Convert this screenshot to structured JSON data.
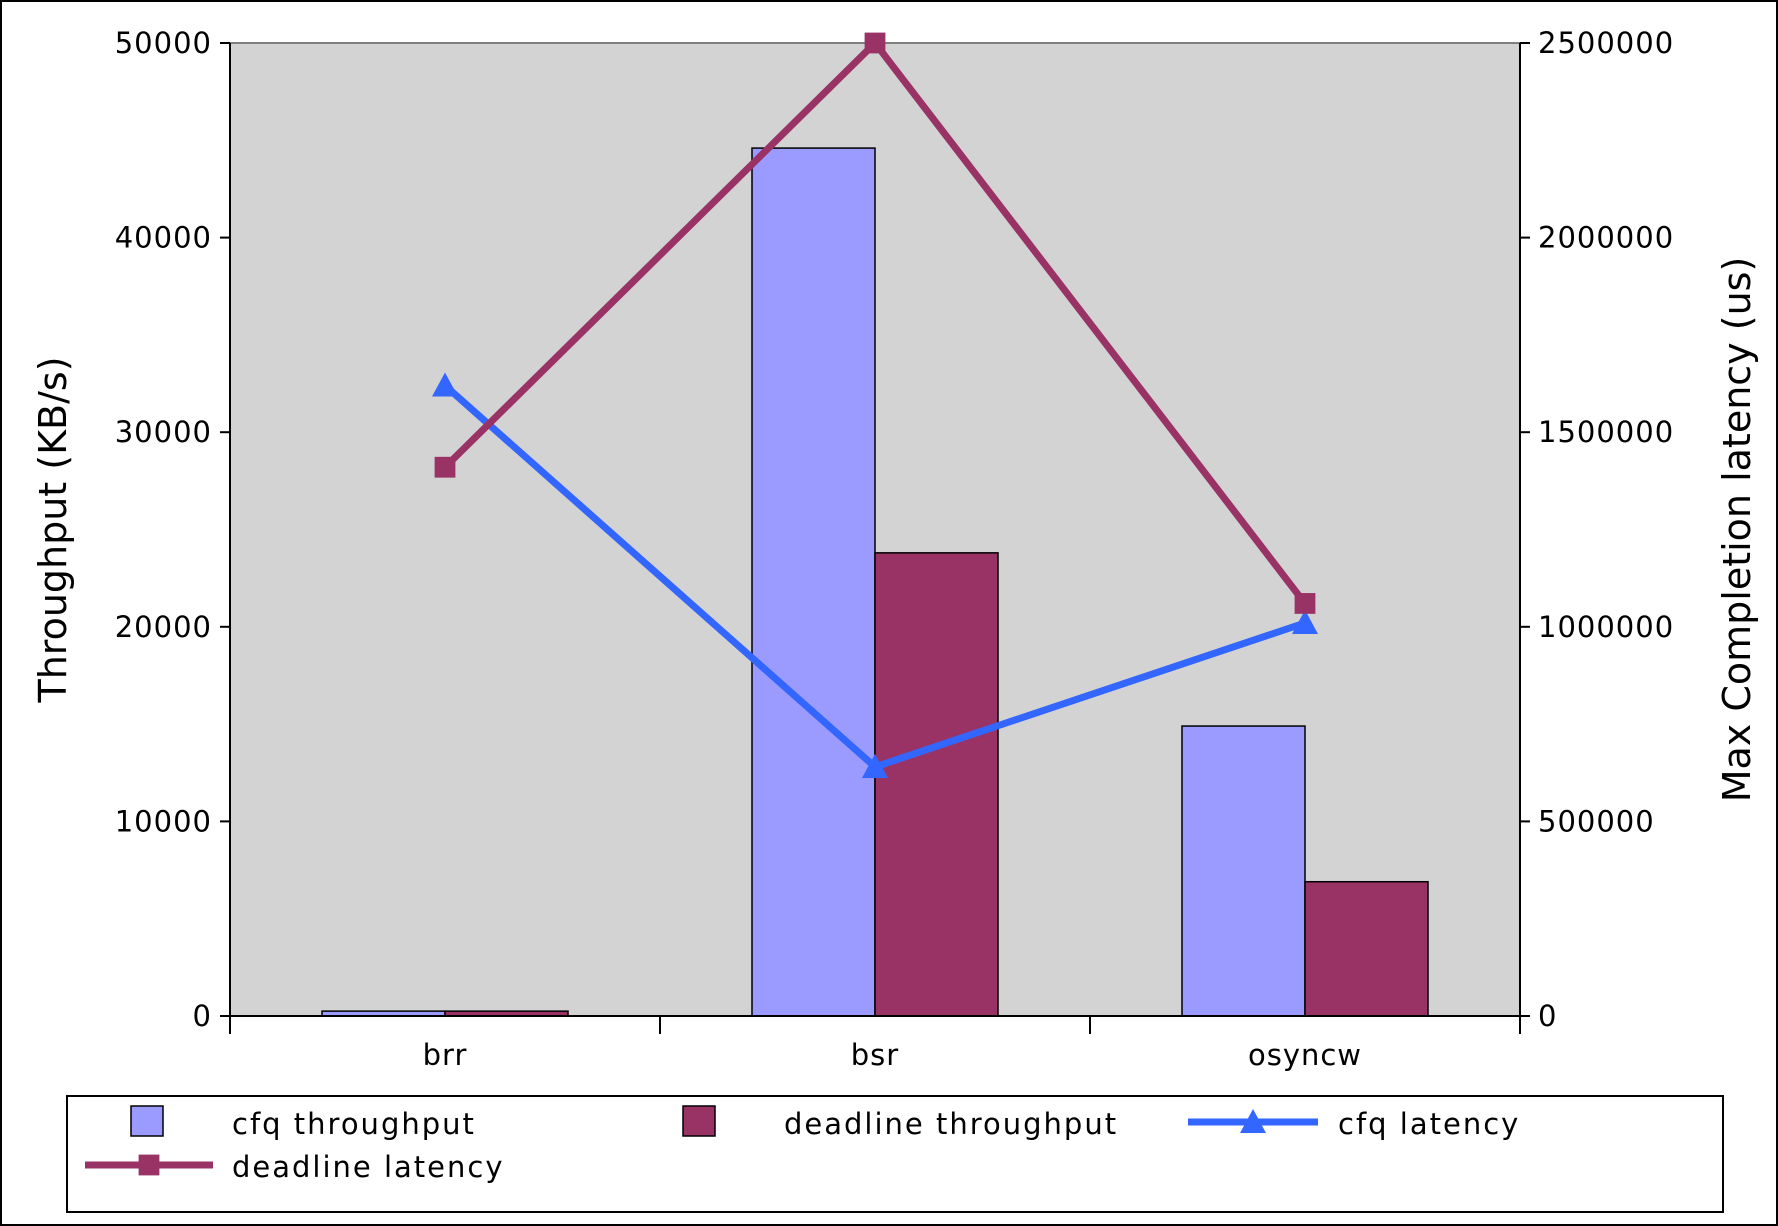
{
  "chart_data": {
    "type": "bar",
    "categories": [
      "brr",
      "bsr",
      "osyncw"
    ],
    "ylabel": "Throughput (KB/s)",
    "y2label": "Max Completion latency (us)",
    "ylim": [
      0,
      50000
    ],
    "y2lim": [
      0,
      2500000
    ],
    "yticks": [
      "0",
      "10000",
      "20000",
      "30000",
      "40000",
      "50000"
    ],
    "y2ticks": [
      "0",
      "500000",
      "1000000",
      "1500000",
      "2000000",
      "2500000"
    ],
    "grid": false,
    "plot_background": "#d3d3d3",
    "legend_position": "bottom",
    "series": [
      {
        "name": "cfq throughput",
        "kind": "bar",
        "axis": "left",
        "color": "#9b9bff",
        "values": [
          250,
          44600,
          14900
        ]
      },
      {
        "name": "deadline throughput",
        "kind": "bar",
        "axis": "left",
        "color": "#993366",
        "values": [
          250,
          23800,
          6900
        ]
      },
      {
        "name": "cfq latency",
        "kind": "line",
        "marker": "triangle",
        "axis": "right",
        "color": "#3366ff",
        "values": [
          1620000,
          640000,
          1010000
        ]
      },
      {
        "name": "deadline latency",
        "kind": "line",
        "marker": "square",
        "axis": "right",
        "color": "#993366",
        "values": [
          1410000,
          2500000,
          1060000
        ]
      }
    ]
  }
}
